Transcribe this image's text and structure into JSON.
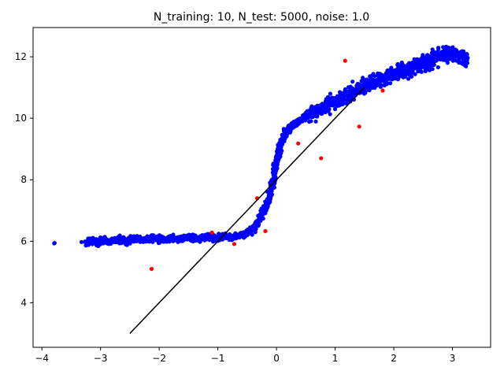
{
  "chart_data": {
    "type": "scatter",
    "title": "N_training: 10,  N_test: 5000,  noise: 1.0",
    "xlabel": "",
    "ylabel": "",
    "xlim": [
      -4.15,
      3.65
    ],
    "ylim": [
      2.55,
      12.95
    ],
    "xticks": [
      -4,
      -3,
      -2,
      -1,
      0,
      1,
      2,
      3
    ],
    "yticks": [
      4,
      6,
      8,
      10,
      12
    ],
    "grid": false,
    "legend": "none",
    "series": [
      {
        "kind": "test",
        "color": "#0000ff",
        "count": 5000,
        "description": "dense sigmoid-shaped cloud: y ≈ 6.1 for x < -0.3, steep rise near x = 0 to ≈ 10, then y rising to ≈ 12 at x ≈ 3",
        "points": [
          [
            -3.79,
            5.93
          ],
          [
            -3.25,
            5.96
          ],
          [
            -3.15,
            6.0
          ],
          [
            -3.05,
            5.97
          ],
          [
            -2.95,
            6.04
          ],
          [
            -2.85,
            5.99
          ],
          [
            -2.7,
            6.06
          ],
          [
            -2.55,
            6.0
          ],
          [
            -2.4,
            6.08
          ],
          [
            -2.25,
            6.02
          ],
          [
            -2.1,
            6.1
          ],
          [
            -1.95,
            6.05
          ],
          [
            -1.8,
            6.12
          ],
          [
            -1.65,
            6.06
          ],
          [
            -1.5,
            6.14
          ],
          [
            -1.35,
            6.08
          ],
          [
            -1.2,
            6.15
          ],
          [
            -1.05,
            6.1
          ],
          [
            -0.9,
            6.16
          ],
          [
            -0.75,
            6.12
          ],
          [
            -0.6,
            6.2
          ],
          [
            -0.45,
            6.3
          ],
          [
            -0.35,
            6.5
          ],
          [
            -0.25,
            6.9
          ],
          [
            -0.18,
            7.1
          ],
          [
            -0.1,
            7.6
          ],
          [
            -0.05,
            8.0
          ],
          [
            0.0,
            8.6
          ],
          [
            0.05,
            9.0
          ],
          [
            0.1,
            9.3
          ],
          [
            0.18,
            9.6
          ],
          [
            0.28,
            9.8
          ],
          [
            0.4,
            9.95
          ],
          [
            0.55,
            10.1
          ],
          [
            0.7,
            10.25
          ],
          [
            0.85,
            10.4
          ],
          [
            1.0,
            10.55
          ],
          [
            1.15,
            10.7
          ],
          [
            1.3,
            10.85
          ],
          [
            1.45,
            11.0
          ],
          [
            1.6,
            11.15
          ],
          [
            1.75,
            11.25
          ],
          [
            1.9,
            11.35
          ],
          [
            2.05,
            11.5
          ],
          [
            2.2,
            11.6
          ],
          [
            2.35,
            11.7
          ],
          [
            2.5,
            11.8
          ],
          [
            2.65,
            11.9
          ],
          [
            2.8,
            12.05
          ],
          [
            2.95,
            12.1
          ],
          [
            3.1,
            12.0
          ],
          [
            3.25,
            11.9
          ]
        ]
      },
      {
        "kind": "training",
        "color": "#ff0000",
        "count": 10,
        "points": [
          [
            -2.13,
            5.1
          ],
          [
            -1.1,
            6.28
          ],
          [
            -0.72,
            5.91
          ],
          [
            -0.33,
            7.4
          ],
          [
            -0.19,
            6.33
          ],
          [
            0.37,
            9.18
          ],
          [
            0.76,
            8.7
          ],
          [
            1.17,
            11.87
          ],
          [
            1.41,
            9.73
          ],
          [
            1.81,
            10.9
          ]
        ]
      },
      {
        "kind": "fit-line",
        "color": "#000000",
        "points": [
          [
            -2.5,
            3.0
          ],
          [
            1.5,
            11.0
          ]
        ]
      }
    ]
  }
}
